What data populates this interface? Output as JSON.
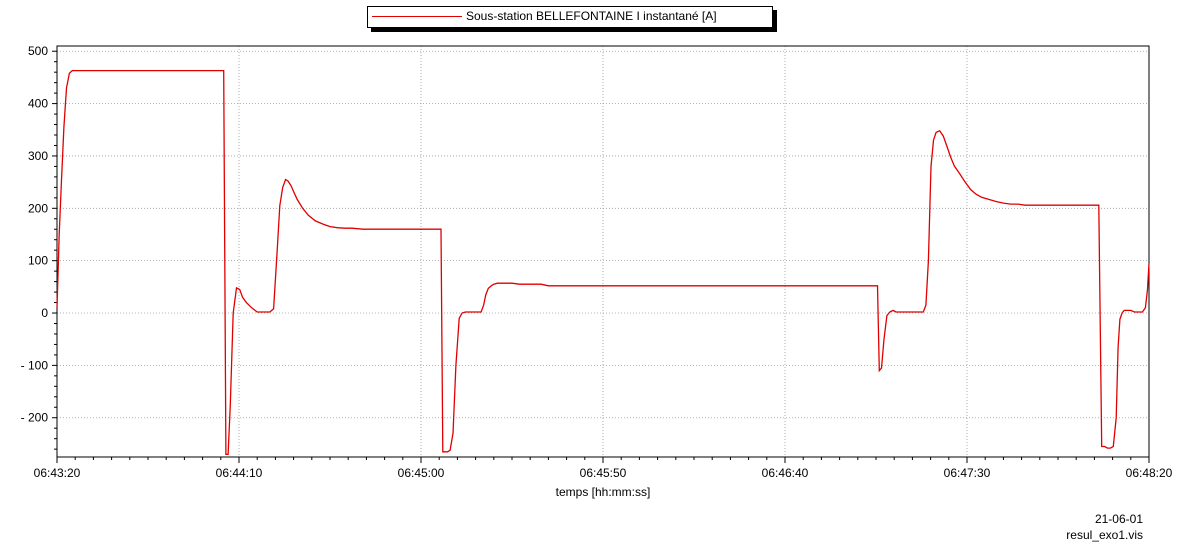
{
  "chart_data": {
    "type": "line",
    "legend": "Sous-station BELLEFONTAINE I instantané [A]",
    "xlabel": "temps  [hh:mm:ss]",
    "ylabel": "",
    "xlim": [
      0,
      300
    ],
    "ylim": [
      -275,
      510
    ],
    "x_ticks": [
      0,
      50,
      100,
      150,
      200,
      250,
      300
    ],
    "x_tick_labels": [
      "06:43:20",
      "06:44:10",
      "06:45:00",
      "06:45:50",
      "06:46:40",
      "06:47:30",
      "06:48:20"
    ],
    "y_ticks": [
      500,
      400,
      300,
      200,
      100,
      0,
      -100,
      -200
    ],
    "y_tick_labels": [
      "500",
      "400",
      "300",
      "200",
      "100",
      "0",
      "- 100",
      "- 200"
    ],
    "grid": true,
    "line_color": "#e00000",
    "series": [
      {
        "name": "Sous-station BELLEFONTAINE I instantané [A]",
        "x": [
          0,
          0.6,
          1.2,
          1.9,
          2.6,
          3.4,
          4.2,
          5,
          20,
          35,
          45.8,
          46.4,
          47,
          47.6,
          48.4,
          49.3,
          50.2,
          51,
          52,
          53.5,
          55,
          57,
          58.5,
          59.5,
          60.5,
          61.2,
          62,
          62.8,
          63.5,
          64.3,
          65,
          66,
          67.5,
          69,
          71,
          73,
          75,
          77,
          79,
          81,
          84,
          88,
          92,
          96,
          100,
          105.5,
          106,
          107.3,
          108,
          108.8,
          109.6,
          110.5,
          111.3,
          112.2,
          113,
          114,
          115,
          116.5,
          117.2,
          117.8,
          118.5,
          119.3,
          120,
          121,
          122,
          123.5,
          125,
          127,
          129,
          131,
          133,
          135,
          150,
          180,
          200,
          225,
          225.4,
          225.9,
          226.5,
          227.2,
          228,
          228.8,
          229.7,
          230.5,
          231.3,
          232.2,
          233,
          234,
          235,
          236.5,
          237.3,
          238,
          238.7,
          239.4,
          240.1,
          240.8,
          241.5,
          242.5,
          243.5,
          244.5,
          245.5,
          246.5,
          248,
          249.5,
          251,
          252.5,
          254,
          256,
          258,
          260,
          262,
          264,
          266,
          270,
          275,
          280,
          285,
          285.4,
          286.2,
          287,
          287.8,
          288.6,
          289.4,
          290.2,
          291,
          291.5,
          292,
          292.6,
          293.2,
          294,
          295,
          296,
          297,
          298.2,
          299,
          299.6,
          300
        ],
        "y": [
          10,
          150,
          250,
          355,
          430,
          458,
          463,
          463,
          463,
          463,
          463,
          -270,
          -270,
          -175,
          0,
          48,
          45,
          30,
          20,
          10,
          2,
          2,
          2,
          8,
          120,
          205,
          240,
          255,
          252,
          243,
          232,
          217,
          200,
          187,
          176,
          170,
          165,
          163,
          162,
          162,
          160,
          160,
          160,
          160,
          160,
          160,
          -265,
          -265,
          -262,
          -230,
          -100,
          -10,
          0,
          2,
          2,
          2,
          2,
          2,
          15,
          35,
          47,
          52,
          55,
          57,
          57,
          57,
          57,
          55,
          55,
          55,
          55,
          52,
          52,
          52,
          52,
          52,
          52,
          -110,
          -105,
          -50,
          -5,
          2,
          5,
          2,
          2,
          2,
          2,
          2,
          2,
          2,
          2,
          2,
          15,
          100,
          280,
          330,
          345,
          348,
          338,
          318,
          298,
          281,
          266,
          250,
          236,
          227,
          221,
          217,
          213,
          210,
          208,
          208,
          206,
          206,
          206,
          206,
          206,
          206,
          206,
          -255,
          -255,
          -258,
          -258,
          -255,
          -200,
          -65,
          -12,
          0,
          5,
          5,
          5,
          2,
          2,
          2,
          10,
          45,
          95
        ]
      }
    ]
  },
  "footer": {
    "date": "21-06-01",
    "file": "resul_exo1.vis"
  }
}
